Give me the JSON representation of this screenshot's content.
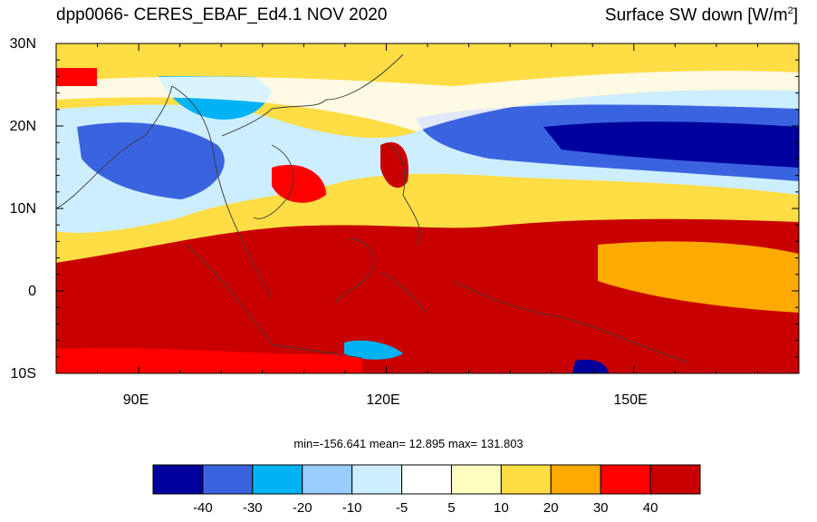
{
  "title_left": "dpp0066- CERES_EBAF_Ed4.1  NOV 2020",
  "title_right_main": "Surface SW down [W/m",
  "title_right_sup": "2",
  "title_right_close": "]",
  "lat_labels": [
    "30N",
    "20N",
    "10N",
    "0",
    "10S"
  ],
  "lon_labels": [
    "90E",
    "120E",
    "150E"
  ],
  "stats": "min=-156.641  mean=  12.895  max= 131.803",
  "colorbar": {
    "colors": [
      "#00009c",
      "#3a63e0",
      "#00b3f5",
      "#99ccff",
      "#cceeff",
      "#ffffff",
      "#ffffc0",
      "#ffdd44",
      "#ffaa00",
      "#ff0000",
      "#c80000"
    ],
    "tick_labels": [
      "-40",
      "-30",
      "-20",
      "-10",
      "-5",
      "5",
      "10",
      "20",
      "30",
      "40"
    ]
  },
  "map": {
    "lon_range": [
      80,
      170
    ],
    "lat_range": [
      -10,
      30
    ],
    "projection": "cylindrical equidistant"
  }
}
